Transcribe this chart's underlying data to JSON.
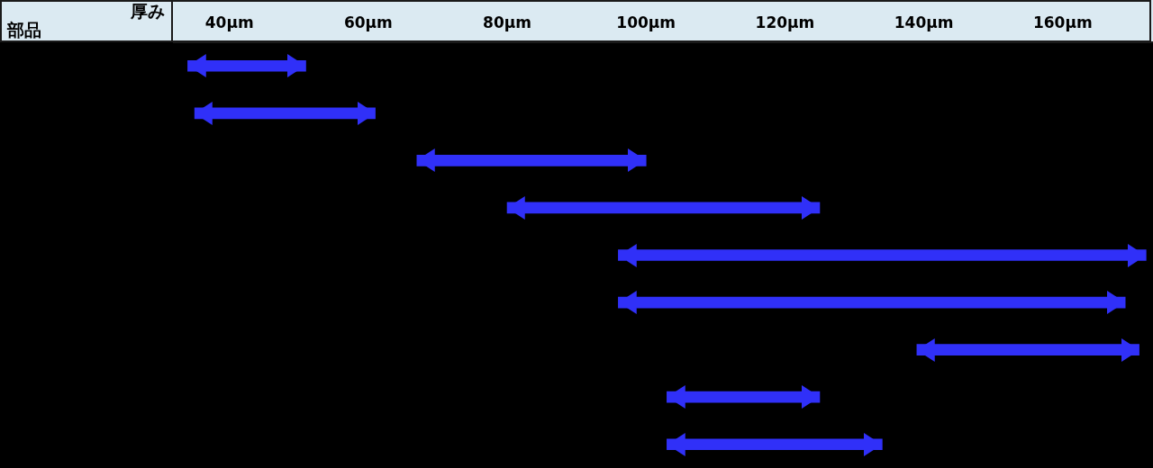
{
  "chart_data": {
    "type": "bar",
    "orientation": "horizontal",
    "xlabel": "厚み",
    "annotations": [
      "部品"
    ],
    "categories": [
      null,
      null,
      null,
      null,
      null,
      null,
      null,
      null,
      null
    ],
    "base": [
      34,
      35,
      67,
      80,
      96,
      96,
      139,
      103,
      103
    ],
    "values": [
      17,
      26,
      33,
      45,
      76,
      73,
      32,
      22,
      31
    ],
    "color": "#3030f8",
    "xlim": [
      32,
      173
    ],
    "xticks": [
      {
        "value": 40,
        "label": "40μm"
      },
      {
        "value": 60,
        "label": "60μm"
      },
      {
        "value": 80,
        "label": "80μm"
      },
      {
        "value": 100,
        "label": "100μm"
      },
      {
        "value": 120,
        "label": "120μm"
      },
      {
        "value": 140,
        "label": "140μm"
      },
      {
        "value": 160,
        "label": "160μm"
      }
    ],
    "tick_labels": "x"
  }
}
